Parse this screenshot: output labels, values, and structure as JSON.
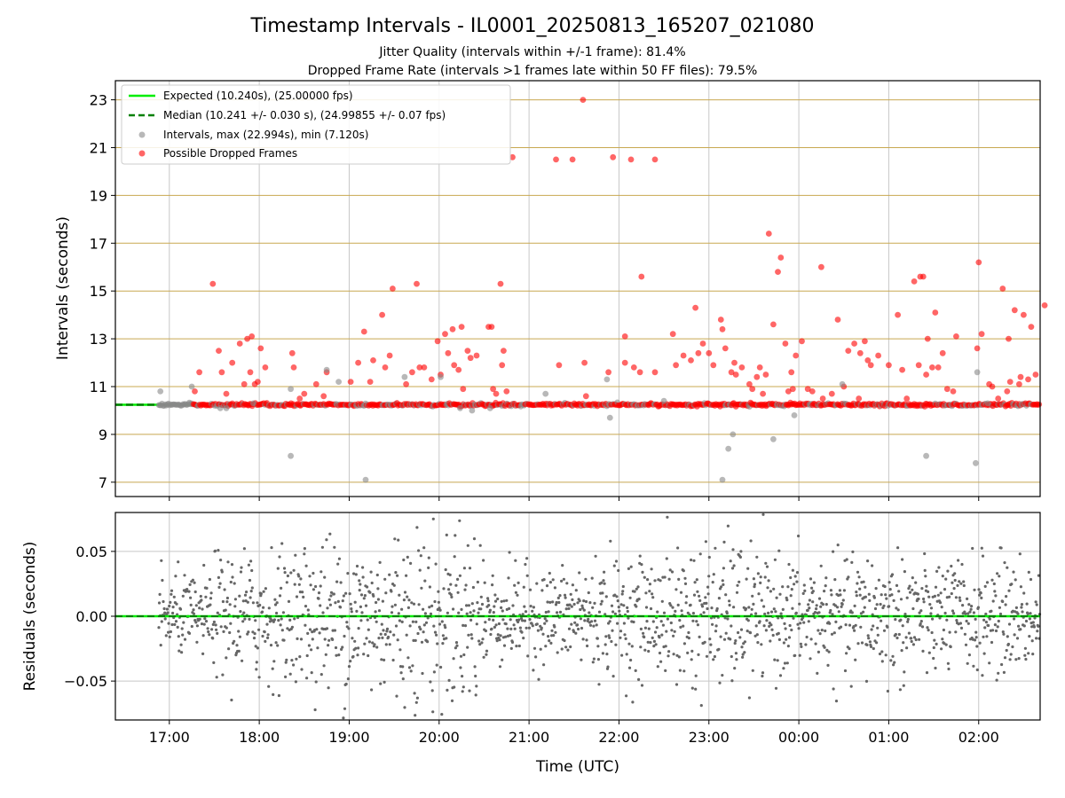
{
  "title": "Timestamp Intervals - IL0001_20250813_165207_021080",
  "subtitle_lines": [
    "Jitter Quality (intervals within +/-1 frame): 81.4%",
    "Dropped Frame Rate (intervals >1 frames late within 50 FF files): 79.5%"
  ],
  "colors": {
    "expected": "#00ee00",
    "median": "#008000",
    "intervals": "#888888",
    "dropped": "#ff0000",
    "hgrid": "#c8a850",
    "vgrid": "#c8c8c8",
    "residual": "#666666"
  },
  "chart_data": [
    {
      "type": "scatter",
      "name": "top",
      "title": "Timestamp Intervals - IL0001_20250813_165207_021080",
      "ylabel": "Intervals (seconds)",
      "xlabel": "",
      "xlim": [
        "16:24",
        "02:41"
      ],
      "ylim": [
        6.4,
        23.8
      ],
      "yticks": [
        7,
        9,
        11,
        13,
        15,
        17,
        19,
        21,
        23
      ],
      "xtick_labels": [
        "17:00",
        "18:00",
        "19:00",
        "20:00",
        "21:00",
        "22:00",
        "23:00",
        "00:00",
        "01:00",
        "02:00"
      ],
      "grid": "on",
      "legend_position": "top-left",
      "legend": [
        "Expected (10.240s), (25.00000 fps)",
        "Median (10.241 +/- 0.030 s), (24.99855 +/- 0.07 fps)",
        "Intervals, max (22.994s), min (7.120s)",
        "Possible Dropped Frames"
      ],
      "expected_value": 10.24,
      "median_value": 10.241,
      "series": [
        {
          "name": "Possible Dropped Frames",
          "points": [
            [
              "17:17",
              10.8
            ],
            [
              "17:20",
              11.6
            ],
            [
              "17:29",
              15.3
            ],
            [
              "17:33",
              12.5
            ],
            [
              "17:35",
              11.6
            ],
            [
              "17:38",
              10.7
            ],
            [
              "17:42",
              12.0
            ],
            [
              "17:47",
              12.8
            ],
            [
              "17:50",
              11.1
            ],
            [
              "17:52",
              13.0
            ],
            [
              "17:54",
              11.6
            ],
            [
              "17:55",
              13.1
            ],
            [
              "17:57",
              11.1
            ],
            [
              "17:59",
              11.2
            ],
            [
              "18:01",
              12.6
            ],
            [
              "18:04",
              11.8
            ],
            [
              "18:22",
              12.4
            ],
            [
              "18:23",
              11.8
            ],
            [
              "18:27",
              10.5
            ],
            [
              "18:30",
              10.7
            ],
            [
              "18:38",
              11.1
            ],
            [
              "18:43",
              10.6
            ],
            [
              "18:45",
              11.6
            ],
            [
              "19:01",
              11.2
            ],
            [
              "19:06",
              12.0
            ],
            [
              "19:10",
              13.3
            ],
            [
              "19:14",
              11.2
            ],
            [
              "19:16",
              12.1
            ],
            [
              "19:22",
              14.0
            ],
            [
              "19:24",
              11.8
            ],
            [
              "19:27",
              12.3
            ],
            [
              "19:29",
              15.1
            ],
            [
              "19:38",
              11.1
            ],
            [
              "19:42",
              11.6
            ],
            [
              "19:45",
              15.3
            ],
            [
              "19:47",
              11.8
            ],
            [
              "19:50",
              11.8
            ],
            [
              "19:55",
              11.3
            ],
            [
              "19:59",
              12.9
            ],
            [
              "20:01",
              11.5
            ],
            [
              "20:04",
              13.2
            ],
            [
              "20:06",
              12.4
            ],
            [
              "20:09",
              13.4
            ],
            [
              "20:10",
              11.9
            ],
            [
              "20:13",
              11.7
            ],
            [
              "20:15",
              13.5
            ],
            [
              "20:16",
              10.9
            ],
            [
              "20:19",
              12.5
            ],
            [
              "20:21",
              12.2
            ],
            [
              "20:25",
              12.3
            ],
            [
              "20:33",
              13.5
            ],
            [
              "20:35",
              13.5
            ],
            [
              "20:36",
              10.9
            ],
            [
              "20:38",
              10.7
            ],
            [
              "20:41",
              15.3
            ],
            [
              "20:42",
              11.9
            ],
            [
              "20:43",
              12.5
            ],
            [
              "20:45",
              10.8
            ],
            [
              "20:49",
              20.6
            ],
            [
              "21:18",
              20.5
            ],
            [
              "21:20",
              11.9
            ],
            [
              "21:29",
              20.5
            ],
            [
              "21:36",
              23.0
            ],
            [
              "21:37",
              12.0
            ],
            [
              "21:38",
              10.6
            ],
            [
              "21:53",
              11.6
            ],
            [
              "21:56",
              20.6
            ],
            [
              "22:04",
              12.0
            ],
            [
              "22:04",
              13.1
            ],
            [
              "22:08",
              20.5
            ],
            [
              "22:10",
              11.8
            ],
            [
              "22:14",
              11.6
            ],
            [
              "22:15",
              15.6
            ],
            [
              "22:24",
              20.5
            ],
            [
              "22:24",
              11.6
            ],
            [
              "22:36",
              13.2
            ],
            [
              "22:38",
              11.9
            ],
            [
              "22:43",
              12.3
            ],
            [
              "22:48",
              12.1
            ],
            [
              "22:51",
              14.3
            ],
            [
              "22:53",
              12.4
            ],
            [
              "22:56",
              12.8
            ],
            [
              "23:00",
              12.4
            ],
            [
              "23:03",
              11.9
            ],
            [
              "23:08",
              13.8
            ],
            [
              "23:09",
              13.4
            ],
            [
              "23:11",
              12.6
            ],
            [
              "23:15",
              11.6
            ],
            [
              "23:17",
              12.0
            ],
            [
              "23:18",
              11.5
            ],
            [
              "23:22",
              11.8
            ],
            [
              "23:27",
              11.1
            ],
            [
              "23:29",
              10.9
            ],
            [
              "23:32",
              11.4
            ],
            [
              "23:34",
              11.8
            ],
            [
              "23:36",
              10.7
            ],
            [
              "23:38",
              11.5
            ],
            [
              "23:40",
              17.4
            ],
            [
              "23:43",
              13.6
            ],
            [
              "23:46",
              15.8
            ],
            [
              "23:48",
              16.4
            ],
            [
              "23:51",
              12.8
            ],
            [
              "23:53",
              10.8
            ],
            [
              "23:55",
              11.6
            ],
            [
              "23:56",
              10.9
            ],
            [
              "23:58",
              12.3
            ],
            [
              "24:02",
              12.9
            ],
            [
              "24:06",
              10.9
            ],
            [
              "24:09",
              10.8
            ],
            [
              "24:15",
              16.0
            ],
            [
              "24:16",
              10.5
            ],
            [
              "24:22",
              10.7
            ],
            [
              "24:26",
              13.8
            ],
            [
              "24:30",
              11.0
            ],
            [
              "24:33",
              12.5
            ],
            [
              "24:37",
              12.8
            ],
            [
              "24:40",
              10.5
            ],
            [
              "24:41",
              12.4
            ],
            [
              "24:44",
              12.9
            ],
            [
              "24:46",
              12.1
            ],
            [
              "24:48",
              11.9
            ],
            [
              "24:53",
              12.3
            ],
            [
              "25:00",
              11.9
            ],
            [
              "25:06",
              14.0
            ],
            [
              "25:09",
              11.7
            ],
            [
              "25:12",
              10.5
            ],
            [
              "25:17",
              15.4
            ],
            [
              "25:20",
              11.9
            ],
            [
              "25:21",
              15.6
            ],
            [
              "25:23",
              15.6
            ],
            [
              "25:25",
              11.5
            ],
            [
              "25:26",
              13.0
            ],
            [
              "25:29",
              11.8
            ],
            [
              "25:31",
              14.1
            ],
            [
              "25:33",
              11.8
            ],
            [
              "25:36",
              12.4
            ],
            [
              "25:39",
              10.9
            ],
            [
              "25:43",
              10.8
            ],
            [
              "25:45",
              13.1
            ],
            [
              "25:59",
              12.6
            ],
            [
              "26:00",
              16.2
            ],
            [
              "26:02",
              13.2
            ],
            [
              "26:07",
              11.1
            ],
            [
              "26:09",
              11.0
            ],
            [
              "26:13",
              10.5
            ],
            [
              "26:16",
              15.1
            ],
            [
              "26:19",
              10.8
            ],
            [
              "26:20",
              13.0
            ],
            [
              "26:21",
              11.2
            ],
            [
              "26:24",
              14.2
            ],
            [
              "26:27",
              11.1
            ],
            [
              "26:28",
              11.4
            ],
            [
              "26:30",
              14.0
            ],
            [
              "26:33",
              11.3
            ],
            [
              "26:35",
              13.5
            ],
            [
              "26:38",
              11.5
            ],
            [
              "26:44",
              14.4
            ]
          ]
        },
        {
          "name": "Intervals",
          "points": [
            [
              "16:54",
              10.8
            ],
            [
              "17:15",
              11.0
            ],
            [
              "17:34",
              10.1
            ],
            [
              "17:38",
              10.1
            ],
            [
              "17:56",
              10.3
            ],
            [
              "18:21",
              8.1
            ],
            [
              "18:21",
              10.9
            ],
            [
              "18:45",
              11.7
            ],
            [
              "18:53",
              11.2
            ],
            [
              "19:11",
              7.1
            ],
            [
              "19:37",
              11.4
            ],
            [
              "20:01",
              11.4
            ],
            [
              "20:14",
              10.1
            ],
            [
              "20:22",
              10.0
            ],
            [
              "20:34",
              10.1
            ],
            [
              "21:11",
              10.7
            ],
            [
              "21:52",
              11.3
            ],
            [
              "21:54",
              9.7
            ],
            [
              "22:30",
              10.4
            ],
            [
              "23:09",
              7.1
            ],
            [
              "23:13",
              8.4
            ],
            [
              "23:16",
              9.0
            ],
            [
              "23:43",
              8.8
            ],
            [
              "23:57",
              9.8
            ],
            [
              "24:29",
              11.1
            ],
            [
              "25:25",
              8.1
            ],
            [
              "25:58",
              7.8
            ],
            [
              "25:59",
              11.6
            ],
            [
              "26:06",
              10.3
            ]
          ]
        }
      ]
    },
    {
      "type": "scatter",
      "name": "residuals",
      "xlabel": "Time (UTC)",
      "ylabel": "Residuals (seconds)",
      "xlim": [
        "16:24",
        "02:41"
      ],
      "ylim": [
        -0.08,
        0.08
      ],
      "yticks": [
        -0.05,
        0.0,
        0.05
      ],
      "ytick_labels": [
        "−0.05",
        "0.00",
        "0.05"
      ],
      "xtick_labels": [
        "17:00",
        "18:00",
        "19:00",
        "20:00",
        "21:00",
        "22:00",
        "23:00",
        "00:00",
        "01:00",
        "02:00"
      ],
      "grid": "on",
      "zero_line": 0.0,
      "x_range": [
        "16:53",
        "02:41"
      ],
      "spread_sd_by_hour": {
        "17:00": 0.015,
        "18:00": 0.025,
        "19:00": 0.03,
        "20:00": 0.035,
        "21:00": 0.018,
        "22:00": 0.022,
        "23:00": 0.028,
        "00:00": 0.022,
        "01:00": 0.025,
        "02:00": 0.022
      }
    }
  ]
}
